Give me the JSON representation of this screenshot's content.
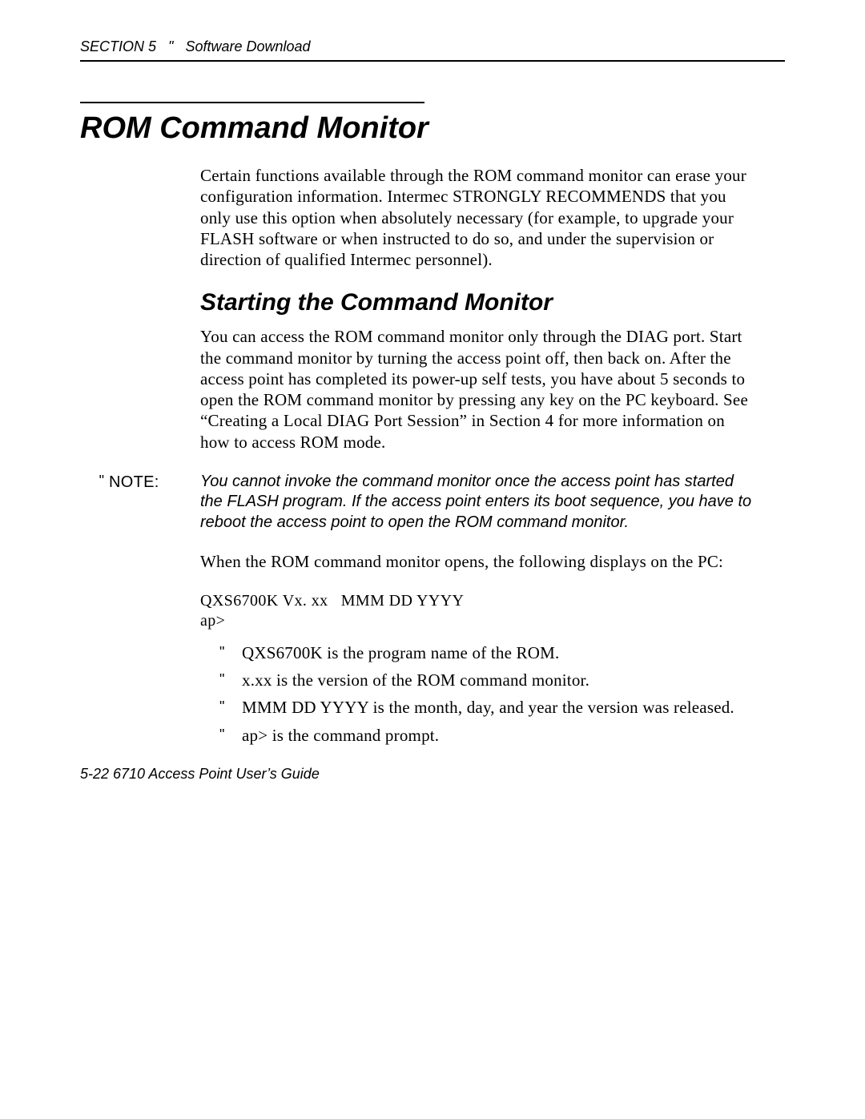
{
  "header": {
    "section": "SECTION 5",
    "separator": "\"",
    "title": "Software Download"
  },
  "title": "ROM Command Monitor",
  "intro": "Certain functions available through the ROM command monitor can erase your configuration information. Intermec STRONGLY RECOMMENDS that you only use this option when absolutely necessary (for example, to upgrade your FLASH software or when instructed to do so, and under the supervision or direction of qualified Intermec personnel).",
  "subhead": "Starting the Command Monitor",
  "para2": "You can access the ROM command monitor only through the DIAG port.  Start the command monitor by turning the access point off, then back on.  After the access point has completed its power-up self tests, you have about 5 seconds to open the ROM command monitor by pressing any key on the PC keyboard.  See “Creating a Local DIAG Port Session” in Section 4 for more information on how to access ROM mode.",
  "note": {
    "mark": "\"",
    "label": "NOTE:",
    "text": "You cannot invoke the command monitor once the access point has started the FLASH program.  If the access point enters its boot sequence, you have to reboot the access point to open the ROM command monitor."
  },
  "para3": "When the ROM command monitor opens, the following displays on the PC:",
  "codeblock": "QXS6700K Vx. xx   MMM DD YYYY\nap>",
  "bullets": [
    "QXS6700K is the program name of the ROM.",
    "x.xx is the version of the ROM command monitor.",
    "MMM DD YYYY is the month, day, and year the version was released.",
    "ap> is the command prompt."
  ],
  "footer": "5-22   6710 Access Point User’s Guide"
}
